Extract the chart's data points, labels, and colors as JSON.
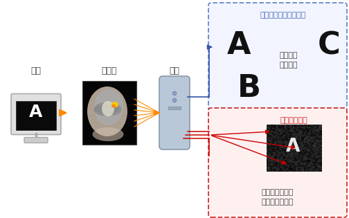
{
  "bg_color": "#ffffff",
  "monitor_label": "画像",
  "brain_label": "脳活動",
  "pc_label": "解析",
  "traditional_title": "従来のデコーディング",
  "traditional_text1": "このうち",
  "traditional_text2": "どれか？",
  "reconstruction_title": "視覚像再構成",
  "reconstruction_text1": "見ている画像を",
  "reconstruction_text2": "そのまま画像化",
  "box1_edge": "#6688cc",
  "box2_edge": "#cc3333",
  "arrow_orange": "#ff8800",
  "arrow_blue": "#3355aa",
  "arrow_red": "#cc0000",
  "text_trad": "#4466bb",
  "text_recon": "#cc2222",
  "text_dark": "#222222",
  "text_gray": "#444444"
}
